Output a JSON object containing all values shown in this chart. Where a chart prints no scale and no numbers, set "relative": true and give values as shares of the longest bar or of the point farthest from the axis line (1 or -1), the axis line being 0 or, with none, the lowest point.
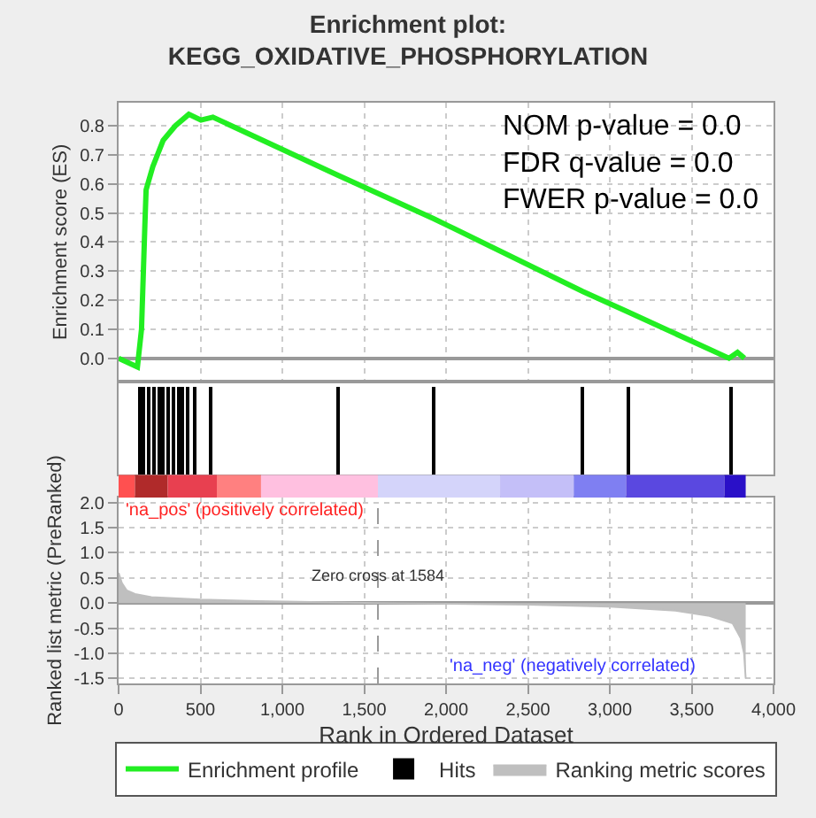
{
  "chart_data": [
    {
      "type": "line",
      "title": "Enrichment plot:\nKEGG_OXIDATIVE_PHOSPHORYLATION",
      "ylabel": "Enrichment score (ES)",
      "xlim": [
        0,
        4000
      ],
      "xticks": [
        0,
        500,
        1000,
        1500,
        2000,
        2500,
        3000,
        3500,
        4000
      ],
      "ylim": [
        -0.08,
        0.88
      ],
      "yticks": [
        {
          "value": 0,
          "label": "0.0"
        },
        0.1,
        0.2,
        0.3,
        0.4,
        0.5,
        0.6,
        0.7,
        0.8
      ],
      "tick_labels": "y",
      "grid": true,
      "legend": "bottom",
      "annotations": [
        "NOM p-value = 0.0\nFDR q-value = 0.0\nFWER p-value = 0.0"
      ],
      "series": [
        {
          "name": "Enrichment profile",
          "color": "#22ee22",
          "x": [
            0,
            115,
            140,
            160,
            168,
            209,
            272,
            346,
            429,
            503,
            576,
            1340,
            1927,
            2835,
            3110,
            3728,
            3780,
            3822
          ],
          "values": [
            0.0,
            -0.03,
            0.1,
            0.45,
            0.58,
            0.66,
            0.75,
            0.8,
            0.84,
            0.82,
            0.83,
            0.63,
            0.48,
            0.23,
            0.16,
            0.0,
            0.02,
            0.0
          ]
        }
      ]
    },
    {
      "type": "bar",
      "relative": true,
      "xlim": [
        0,
        4000
      ],
      "tick_labels": false,
      "legend": "bottom",
      "series": [
        {
          "name": "Hits",
          "color": "#000000",
          "x": [
            126,
            155,
            185,
            215,
            245,
            275,
            305,
            335,
            365,
            395,
            425,
            460,
            565,
            1340,
            1927,
            2835,
            3110,
            3738
          ],
          "values": [
            1,
            1,
            1,
            1,
            1,
            1,
            1,
            1,
            1,
            1,
            1,
            1,
            1,
            1,
            1,
            1,
            1,
            1
          ]
        }
      ]
    },
    {
      "type": "area",
      "xlabel": "Rank in Ordered Dataset",
      "ylabel": "Ranked list metric (PreRanked)",
      "xlim": [
        0,
        4000
      ],
      "xticks": [
        0,
        500,
        {
          "value": 1000,
          "label": "1,000"
        },
        {
          "value": 1500,
          "label": "1,500"
        },
        {
          "value": 2000,
          "label": "2,000"
        },
        {
          "value": 2500,
          "label": "2,500"
        },
        {
          "value": 3000,
          "label": "3,000"
        },
        {
          "value": 3500,
          "label": "3,500"
        },
        {
          "value": 4000,
          "label": "4,000"
        }
      ],
      "ylim": [
        -1.6,
        2.1
      ],
      "yticks": [
        -1.5,
        {
          "value": -1,
          "label": "-1.0"
        },
        -0.5,
        {
          "value": 0,
          "label": "0.0"
        },
        0.5,
        {
          "value": 1,
          "label": "1.0"
        },
        1.5,
        {
          "value": 2,
          "label": "2.0"
        }
      ],
      "grid": true,
      "legend": "bottom",
      "ref_lines": [
        {
          "axis": "x",
          "value": 1584,
          "label": "Zero cross at 1584",
          "color": "#999999",
          "line_style": "dashed"
        }
      ],
      "annotations": [
        "'na_pos' (positively correlated)",
        "'na_neg' (negatively correlated)"
      ],
      "series": [
        {
          "name": "Ranking metric scores",
          "color": "#bfbfbf",
          "x": [
            0,
            20,
            50,
            100,
            200,
            500,
            850,
            1584,
            2500,
            3000,
            3400,
            3600,
            3750,
            3800,
            3820,
            3830
          ],
          "values": [
            0.6,
            0.4,
            0.25,
            0.18,
            0.12,
            0.07,
            0.04,
            0.0,
            -0.03,
            -0.07,
            -0.15,
            -0.25,
            -0.4,
            -0.7,
            -1.0,
            -1.5
          ]
        }
      ]
    }
  ]
}
